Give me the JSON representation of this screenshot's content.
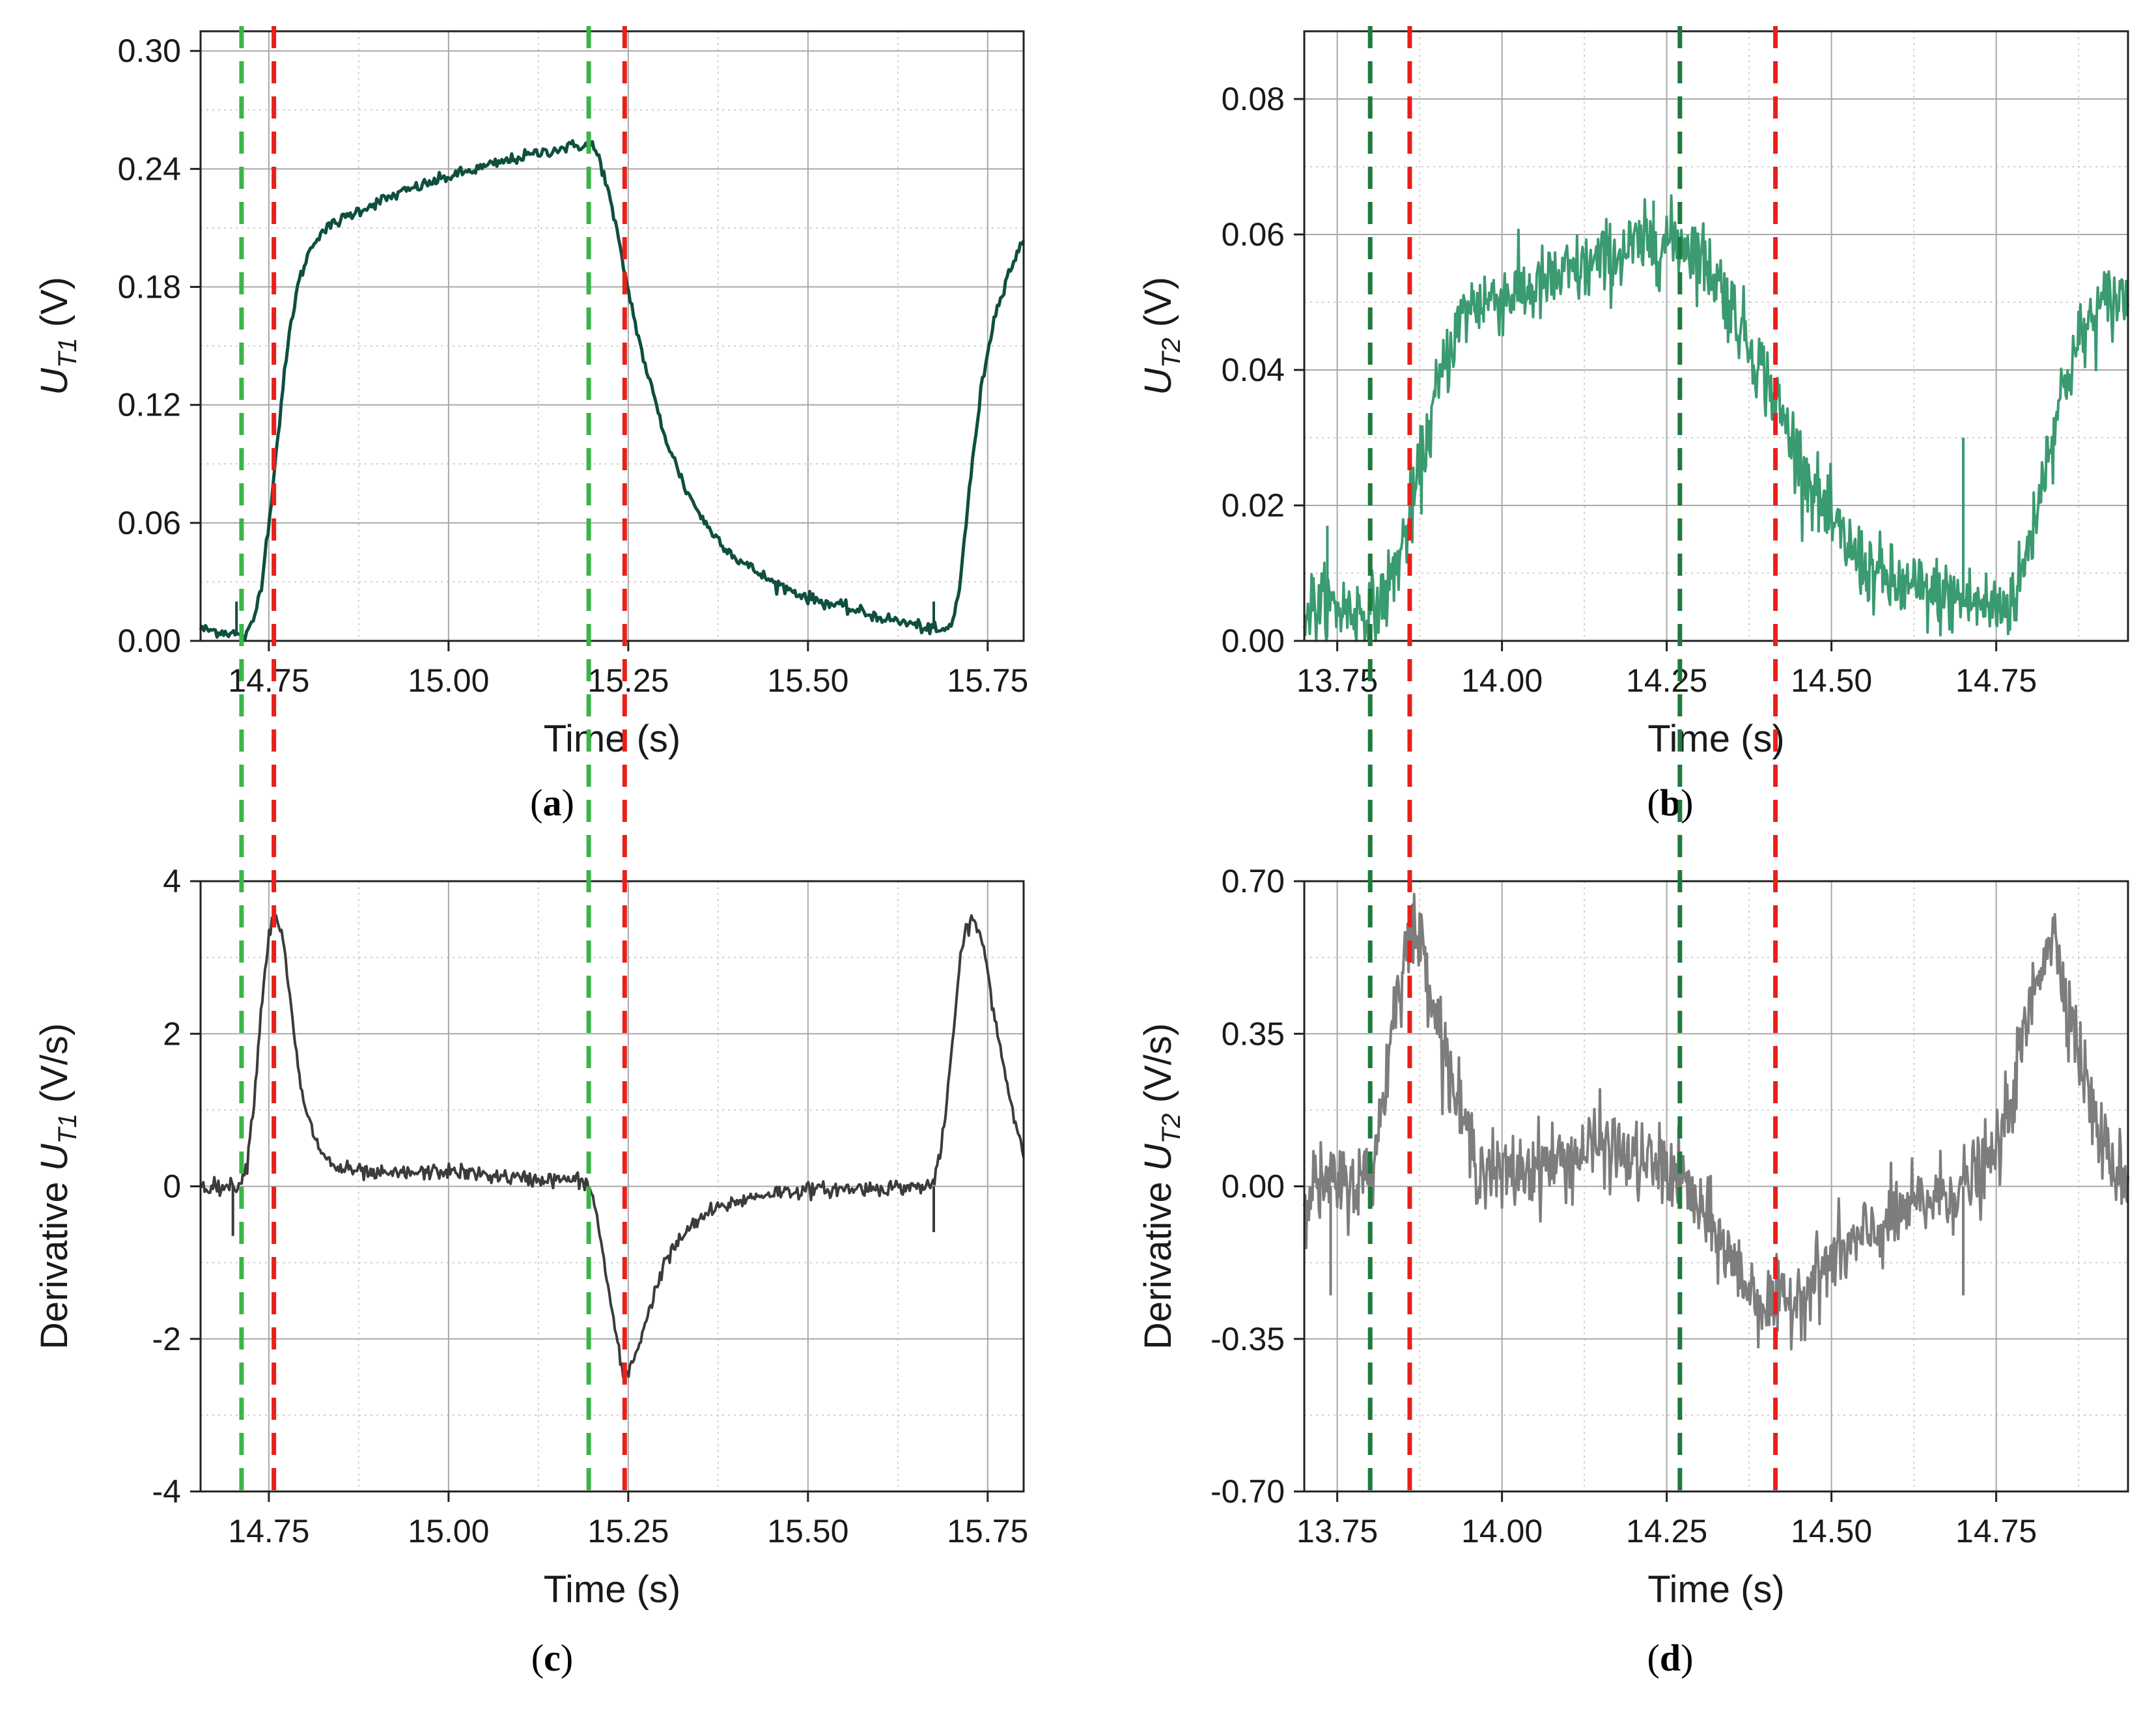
{
  "chart_data": [
    {
      "id": "a",
      "type": "line",
      "panel_label": "a",
      "xlabel": "Time (s)",
      "ylabel": {
        "main": "U",
        "sub": "T1",
        "unit": "(V)"
      },
      "xlim": [
        14.655,
        15.8
      ],
      "ylim": [
        0.0,
        0.31
      ],
      "xticks": [
        14.75,
        15.0,
        15.25,
        15.5,
        15.75
      ],
      "xtick_labels": [
        "14.75",
        "15.00",
        "15.25",
        "15.50",
        "15.75"
      ],
      "yticks": [
        0.0,
        0.06,
        0.12,
        0.18,
        0.24,
        0.3
      ],
      "ytick_labels": [
        "0.00",
        "0.06",
        "0.12",
        "0.18",
        "0.24",
        "0.30"
      ],
      "zero_line": false,
      "series": [
        {
          "name": "U_T1",
          "color": "#0f4f3f",
          "noise": 0.0015,
          "noise_n": 500,
          "linewidth": 5,
          "x": [
            14.655,
            14.7,
            14.71,
            14.72,
            14.73,
            14.74,
            14.75,
            14.76,
            14.77,
            14.78,
            14.79,
            14.8,
            14.81,
            14.82,
            14.84,
            14.87,
            14.9,
            14.95,
            15.0,
            15.05,
            15.1,
            15.15,
            15.18,
            15.19,
            15.2,
            15.21,
            15.22,
            15.23,
            15.24,
            15.25,
            15.27,
            15.3,
            15.33,
            15.36,
            15.4,
            15.45,
            15.5,
            15.55,
            15.6,
            15.65,
            15.67,
            15.68,
            15.69,
            15.7,
            15.71,
            15.72,
            15.73,
            15.74,
            15.75,
            15.76,
            15.77,
            15.78,
            15.79,
            15.8
          ],
          "y": [
            0.006,
            0.004,
            0.002,
            0.003,
            0.012,
            0.03,
            0.06,
            0.095,
            0.13,
            0.16,
            0.18,
            0.192,
            0.201,
            0.207,
            0.212,
            0.218,
            0.223,
            0.23,
            0.236,
            0.241,
            0.246,
            0.25,
            0.252,
            0.252,
            0.252,
            0.245,
            0.232,
            0.215,
            0.197,
            0.178,
            0.145,
            0.105,
            0.077,
            0.058,
            0.042,
            0.03,
            0.022,
            0.017,
            0.012,
            0.008,
            0.006,
            0.005,
            0.005,
            0.008,
            0.025,
            0.06,
            0.095,
            0.125,
            0.148,
            0.165,
            0.178,
            0.188,
            0.196,
            0.203
          ]
        }
      ],
      "spikes": [
        {
          "x": 14.705,
          "y0": 0.004,
          "y1": 0.02,
          "color": "#0f4f3f"
        },
        {
          "x": 15.675,
          "y0": 0.006,
          "y1": 0.02,
          "color": "#0f4f3f"
        }
      ],
      "markers": [
        {
          "x": 14.712,
          "color": "#3cb44b"
        },
        {
          "x": 14.757,
          "color": "#e8201c"
        },
        {
          "x": 15.195,
          "color": "#3cb44b"
        },
        {
          "x": 15.245,
          "color": "#e8201c"
        }
      ]
    },
    {
      "id": "b",
      "type": "line",
      "panel_label": "b",
      "xlabel": "Time (s)",
      "ylabel": {
        "main": "U",
        "sub": "T2",
        "unit": "(V)"
      },
      "xlim": [
        13.7,
        14.95
      ],
      "ylim": [
        0.0,
        0.09
      ],
      "xticks": [
        13.75,
        14.0,
        14.25,
        14.5,
        14.75
      ],
      "xtick_labels": [
        "13.75",
        "14.00",
        "14.25",
        "14.50",
        "14.75"
      ],
      "yticks": [
        0.0,
        0.02,
        0.04,
        0.06,
        0.08
      ],
      "ytick_labels": [
        "0.00",
        "0.02",
        "0.04",
        "0.06",
        "0.08"
      ],
      "zero_line": false,
      "series": [
        {
          "name": "U_T2",
          "color": "#3a9a70",
          "noise": 0.0028,
          "noise_n": 900,
          "linewidth": 4,
          "x": [
            13.7,
            13.75,
            13.8,
            13.82,
            13.84,
            13.86,
            13.88,
            13.9,
            13.92,
            13.94,
            13.96,
            14.0,
            14.05,
            14.1,
            14.15,
            14.2,
            14.25,
            14.28,
            14.3,
            14.33,
            14.36,
            14.4,
            14.43,
            14.46,
            14.5,
            14.55,
            14.6,
            14.65,
            14.7,
            14.74,
            14.76,
            14.78,
            14.8,
            14.82,
            14.84,
            14.86,
            14.88,
            14.9,
            14.92,
            14.95
          ],
          "y": [
            0.005,
            0.005,
            0.004,
            0.006,
            0.011,
            0.018,
            0.027,
            0.036,
            0.043,
            0.048,
            0.05,
            0.051,
            0.052,
            0.054,
            0.056,
            0.058,
            0.059,
            0.059,
            0.057,
            0.053,
            0.047,
            0.039,
            0.032,
            0.025,
            0.017,
            0.011,
            0.008,
            0.007,
            0.006,
            0.005,
            0.005,
            0.007,
            0.014,
            0.024,
            0.033,
            0.04,
            0.045,
            0.048,
            0.05,
            0.051
          ]
        }
      ],
      "spikes": [
        {
          "x": 13.735,
          "y0": 0.004,
          "y1": 0.017,
          "color": "#3a9a70"
        },
        {
          "x": 14.23,
          "y0": 0.058,
          "y1": 0.065,
          "color": "#3a9a70"
        },
        {
          "x": 14.7,
          "y0": 0.005,
          "y1": 0.03,
          "color": "#3a9a70"
        }
      ],
      "markers": [
        {
          "x": 13.8,
          "color": "#1e7a3c"
        },
        {
          "x": 13.86,
          "color": "#e8201c"
        },
        {
          "x": 14.27,
          "color": "#1e7a3c"
        },
        {
          "x": 14.415,
          "color": "#e8201c"
        }
      ]
    },
    {
      "id": "c",
      "type": "line",
      "panel_label": "c",
      "xlabel": "Time (s)",
      "ylabel": {
        "main": "Derivative U",
        "sub": "T1",
        "unit": "(V/s)"
      },
      "xlim": [
        14.655,
        15.8
      ],
      "ylim": [
        -4,
        4
      ],
      "xticks": [
        14.75,
        15.0,
        15.25,
        15.5,
        15.75
      ],
      "xtick_labels": [
        "14.75",
        "15.00",
        "15.25",
        "15.50",
        "15.75"
      ],
      "yticks": [
        -4,
        -2,
        0,
        2,
        4
      ],
      "ytick_labels": [
        "-4",
        "-2",
        "0",
        "2",
        "4"
      ],
      "zero_line": true,
      "series": [
        {
          "name": "dU_T1/dt",
          "color": "#3b3b3b",
          "noise": 0.05,
          "noise_n": 600,
          "linewidth": 4,
          "x": [
            14.655,
            14.7,
            14.71,
            14.72,
            14.73,
            14.74,
            14.75,
            14.76,
            14.77,
            14.78,
            14.79,
            14.8,
            14.82,
            14.84,
            14.9,
            15.0,
            15.1,
            15.18,
            15.19,
            15.2,
            15.21,
            15.22,
            15.23,
            15.24,
            15.245,
            15.25,
            15.26,
            15.28,
            15.3,
            15.33,
            15.36,
            15.4,
            15.45,
            15.5,
            15.6,
            15.67,
            15.68,
            15.69,
            15.7,
            15.71,
            15.72,
            15.73,
            15.74,
            15.75,
            15.76,
            15.77,
            15.78,
            15.79,
            15.8
          ],
          "y": [
            0.0,
            0.0,
            0.05,
            0.3,
            1.2,
            2.4,
            3.3,
            3.6,
            3.2,
            2.4,
            1.6,
            1.0,
            0.5,
            0.25,
            0.15,
            0.2,
            0.1,
            0.08,
            0.05,
            -0.1,
            -0.6,
            -1.2,
            -1.8,
            -2.35,
            -2.5,
            -2.45,
            -2.2,
            -1.6,
            -1.0,
            -0.6,
            -0.35,
            -0.2,
            -0.08,
            -0.05,
            -0.02,
            0.0,
            0.2,
            0.8,
            1.8,
            2.8,
            3.4,
            3.5,
            3.3,
            2.8,
            2.2,
            1.7,
            1.2,
            0.8,
            0.4
          ]
        }
      ],
      "spikes": [
        {
          "x": 14.7,
          "y0": 0.0,
          "y1": -0.65,
          "color": "#3b3b3b"
        },
        {
          "x": 15.675,
          "y0": 0.0,
          "y1": -0.6,
          "color": "#3b3b3b"
        }
      ],
      "markers": [
        {
          "x": 14.712,
          "color": "#3cb44b"
        },
        {
          "x": 14.757,
          "color": "#e8201c"
        },
        {
          "x": 15.195,
          "color": "#3cb44b"
        },
        {
          "x": 15.245,
          "color": "#e8201c"
        }
      ]
    },
    {
      "id": "d",
      "type": "line",
      "panel_label": "d",
      "xlabel": "Time (s)",
      "ylabel": {
        "main": "Derivative U",
        "sub": "T2",
        "unit": "(V/s)"
      },
      "xlim": [
        13.7,
        14.95
      ],
      "ylim": [
        -0.7,
        0.7
      ],
      "xticks": [
        13.75,
        14.0,
        14.25,
        14.5,
        14.75
      ],
      "xtick_labels": [
        "13.75",
        "14.00",
        "14.25",
        "14.50",
        "14.75"
      ],
      "yticks": [
        -0.7,
        -0.35,
        0.0,
        0.35,
        0.7
      ],
      "ytick_labels": [
        "-0.70",
        "-0.35",
        "0.00",
        "0.35",
        "0.70"
      ],
      "zero_line": true,
      "series": [
        {
          "name": "dU_T2/dt",
          "color": "#7d7d7d",
          "noise": 0.045,
          "noise_n": 900,
          "linewidth": 4,
          "x": [
            13.7,
            13.75,
            13.8,
            13.82,
            13.84,
            13.86,
            13.87,
            13.88,
            13.9,
            13.93,
            13.96,
            14.0,
            14.05,
            14.1,
            14.15,
            14.2,
            14.25,
            14.28,
            14.3,
            14.33,
            14.36,
            14.39,
            14.42,
            14.44,
            14.47,
            14.5,
            14.55,
            14.6,
            14.65,
            14.7,
            14.74,
            14.76,
            14.78,
            14.8,
            14.82,
            14.83,
            14.84,
            14.86,
            14.88,
            14.9,
            14.92,
            14.95
          ],
          "y": [
            0.0,
            0.0,
            0.02,
            0.2,
            0.45,
            0.57,
            0.58,
            0.55,
            0.4,
            0.2,
            0.06,
            0.02,
            0.05,
            0.06,
            0.1,
            0.06,
            0.04,
            0.0,
            -0.06,
            -0.12,
            -0.2,
            -0.26,
            -0.28,
            -0.26,
            -0.22,
            -0.17,
            -0.12,
            -0.07,
            -0.03,
            0.0,
            0.05,
            0.12,
            0.25,
            0.4,
            0.53,
            0.58,
            0.56,
            0.42,
            0.28,
            0.15,
            0.06,
            0.02
          ]
        }
      ],
      "spikes": [
        {
          "x": 13.74,
          "y0": 0.0,
          "y1": -0.25,
          "color": "#7d7d7d"
        },
        {
          "x": 14.7,
          "y0": 0.0,
          "y1": -0.25,
          "color": "#7d7d7d"
        }
      ],
      "markers": [
        {
          "x": 13.8,
          "color": "#1e7a3c"
        },
        {
          "x": 13.86,
          "color": "#e8201c"
        },
        {
          "x": 14.27,
          "color": "#1e7a3c"
        },
        {
          "x": 14.415,
          "color": "#e8201c"
        }
      ]
    }
  ]
}
